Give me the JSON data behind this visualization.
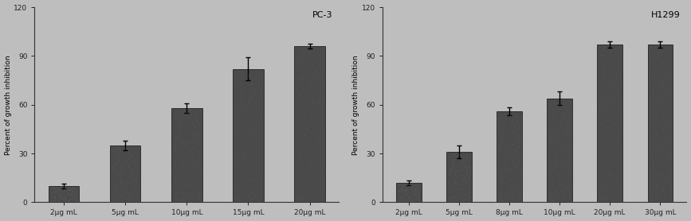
{
  "pc3": {
    "title": "PC-3",
    "categories": [
      "2μg mL",
      "5μg mL",
      "10μg mL",
      "15μg mL",
      "20μg mL"
    ],
    "values": [
      10,
      35,
      58,
      82,
      96
    ],
    "errors": [
      1.5,
      3,
      3,
      7,
      1.5
    ],
    "ylabel": "Percent of growth inhibition",
    "ylim": [
      0,
      120
    ],
    "yticks": [
      0,
      30,
      60,
      90,
      120
    ]
  },
  "h1299": {
    "title": "H1299",
    "categories": [
      "2μg mL",
      "5μg mL",
      "8μg mL",
      "10μg mL",
      "20μg mL",
      "30μg mL"
    ],
    "values": [
      12,
      31,
      56,
      64,
      97,
      97
    ],
    "errors": [
      1.5,
      4,
      2.5,
      4,
      2,
      2
    ],
    "ylabel": "Percent of growth inhibition",
    "ylim": [
      0,
      120
    ],
    "yticks": [
      0,
      30,
      60,
      90,
      120
    ]
  },
  "bar_color": "#4a4a4a",
  "figure_facecolor": "#bebebe",
  "axes_facecolor": "#bebebe",
  "title_fontsize": 8,
  "label_fontsize": 6.5,
  "tick_fontsize": 6.5
}
